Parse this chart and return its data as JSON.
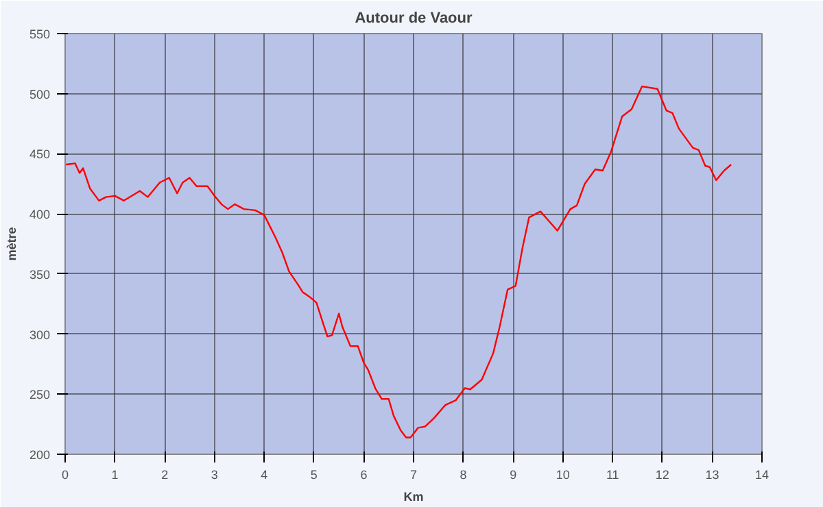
{
  "chart_data": {
    "type": "line",
    "title": "Autour de Vaour",
    "xlabel": "Km",
    "ylabel": "mètre",
    "x": [
      0,
      0.2,
      0.29,
      0.36,
      0.5,
      0.68,
      0.82,
      1.0,
      1.18,
      1.5,
      1.66,
      1.9,
      2.09,
      2.25,
      2.36,
      2.5,
      2.64,
      2.86,
      3.0,
      3.14,
      3.27,
      3.41,
      3.59,
      3.82,
      4.0,
      4.23,
      4.36,
      4.5,
      4.68,
      4.77,
      4.91,
      5.05,
      5.19,
      5.27,
      5.36,
      5.5,
      5.57,
      5.73,
      5.88,
      6.0,
      6.09,
      6.23,
      6.36,
      6.5,
      6.6,
      6.74,
      6.85,
      6.94,
      7.09,
      7.23,
      7.41,
      7.64,
      7.85,
      8.03,
      8.14,
      8.37,
      8.6,
      8.73,
      8.89,
      9.05,
      9.19,
      9.32,
      9.55,
      9.89,
      10.15,
      10.28,
      10.44,
      10.65,
      10.8,
      10.97,
      11.19,
      11.38,
      11.59,
      11.9,
      12.08,
      12.2,
      12.33,
      12.61,
      12.73,
      12.86,
      12.95,
      13.08,
      13.24,
      13.38
    ],
    "series": [
      {
        "color": "#ff0000",
        "values": [
          441,
          442,
          434,
          438,
          421,
          411,
          414,
          415,
          411,
          419,
          414,
          426,
          430,
          417,
          426,
          430,
          423,
          423,
          415,
          408,
          404,
          408,
          404,
          403,
          399,
          380,
          368,
          352,
          341,
          335,
          331,
          326,
          308,
          298,
          299,
          317,
          306,
          290,
          290,
          276,
          270,
          255,
          246,
          246,
          232,
          220,
          214,
          214,
          222,
          223,
          230,
          241,
          245,
          255,
          254,
          262,
          284,
          306,
          337,
          340,
          372,
          397,
          402,
          386,
          404,
          407,
          425,
          437,
          436,
          452,
          481,
          487,
          506,
          504,
          486,
          484,
          471,
          455,
          453,
          440,
          439,
          428,
          436,
          441
        ]
      }
    ],
    "xlim": [
      0,
      14
    ],
    "ylim": [
      200,
      550
    ],
    "xticks": [
      0,
      1,
      2,
      3,
      4,
      5,
      6,
      7,
      8,
      9,
      10,
      11,
      12,
      13,
      14
    ],
    "yticks": [
      200,
      250,
      300,
      350,
      400,
      450,
      500,
      550
    ],
    "grid": true,
    "marker": "none",
    "line_style": "solid"
  }
}
